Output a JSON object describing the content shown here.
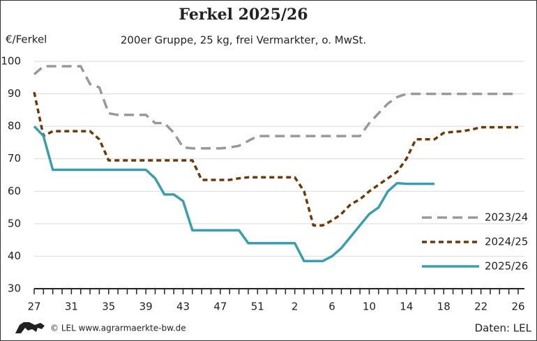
{
  "chart_data": {
    "type": "line",
    "title": "Ferkel 2025/26",
    "subtitle": "200er Gruppe, 25 kg, frei Vermarkter, o. MwSt.",
    "y_label": "€/Ferkel",
    "source": "© LEL www.agrarmaerkte-bw.de",
    "credit": "Daten: LEL",
    "categories": [
      "27",
      null,
      null,
      null,
      "31",
      null,
      null,
      null,
      "35",
      null,
      null,
      null,
      "39",
      null,
      null,
      null,
      "43",
      null,
      null,
      null,
      "47",
      null,
      null,
      null,
      "51",
      null,
      null,
      null,
      "2",
      null,
      null,
      null,
      "6",
      null,
      null,
      null,
      "10",
      null,
      null,
      null,
      "14",
      null,
      null,
      null,
      "18",
      null,
      null,
      null,
      "22",
      null,
      null,
      null,
      "26"
    ],
    "ylim": [
      30,
      100
    ],
    "yticks": [
      30,
      40,
      50,
      60,
      70,
      80,
      90,
      100
    ],
    "grid": true,
    "legend": "lower right",
    "series": [
      {
        "name": "2023/24",
        "color": "#999999",
        "dashed": true,
        "values": [
          96,
          98.5,
          98.5,
          98.5,
          98.5,
          98.5,
          93,
          92,
          84,
          83.5,
          83.5,
          83.5,
          83.5,
          81,
          81,
          78,
          73.5,
          73.2,
          73.2,
          73.2,
          73.2,
          73.5,
          74,
          75.5,
          77,
          77,
          77,
          77,
          77,
          77,
          77,
          77,
          77,
          77,
          77,
          77,
          81,
          84,
          87,
          89,
          90,
          90,
          90,
          90,
          90,
          90,
          90,
          90,
          90,
          90,
          90,
          90,
          90
        ]
      },
      {
        "name": "2024/25",
        "color": "#6b3a0a",
        "dashed": true,
        "values": [
          90.5,
          77,
          78.5,
          78.5,
          78.5,
          78.5,
          78.5,
          76,
          69.5,
          69.5,
          69.5,
          69.5,
          69.5,
          69.5,
          69.5,
          69.5,
          69.5,
          69.5,
          63.5,
          63.5,
          63.5,
          63.5,
          64,
          64.3,
          64.3,
          64.3,
          64.3,
          64.3,
          64.3,
          60,
          49.5,
          49.5,
          51,
          53,
          56,
          57.5,
          60,
          62,
          64,
          66,
          70,
          76,
          76,
          76,
          78,
          78.3,
          78.5,
          79,
          79.7,
          79.7,
          79.7,
          79.7,
          79.7
        ]
      },
      {
        "name": "2025/26",
        "color": "#3a9ead",
        "dashed": false,
        "values": [
          80,
          77,
          66.6,
          66.6,
          66.6,
          66.6,
          66.6,
          66.6,
          66.6,
          66.6,
          66.6,
          66.6,
          66.6,
          64,
          59,
          59,
          57,
          48,
          48,
          48,
          48,
          48,
          48,
          44,
          44,
          44,
          44,
          44,
          44,
          38.5,
          38.5,
          38.5,
          40,
          42.5,
          46,
          49.5,
          53,
          55,
          60,
          62.5,
          62.3,
          62.3,
          62.3,
          62.3,
          null,
          null,
          null,
          null,
          null,
          null,
          null,
          null,
          null
        ]
      }
    ]
  }
}
